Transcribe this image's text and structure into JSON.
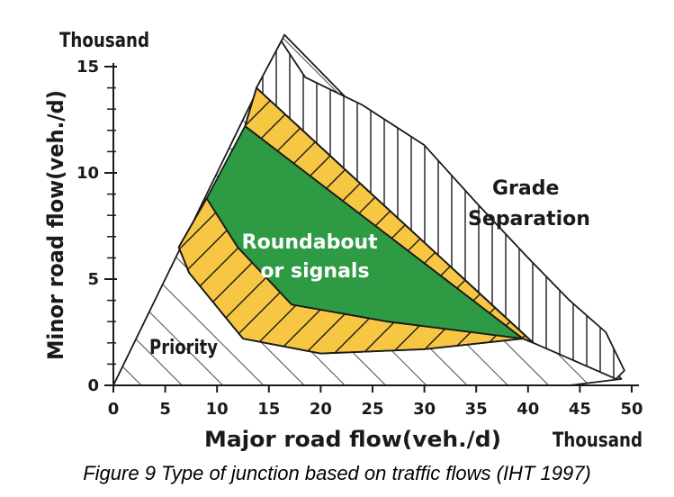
{
  "chart_data": {
    "type": "area",
    "title": "",
    "xlabel": "Major road flow(veh./d)",
    "ylabel": "Minor road flow(veh./d)",
    "x_unit": "Thousand",
    "y_unit": "Thousand",
    "xlim": [
      0,
      50
    ],
    "ylim": [
      0,
      15
    ],
    "x_ticks": [
      0,
      5,
      10,
      15,
      20,
      25,
      30,
      35,
      40,
      45,
      50
    ],
    "y_ticks": [
      0,
      5,
      10,
      15
    ],
    "grid": false,
    "legend": "none",
    "colors": {
      "roundabout_green": "#2e9a44",
      "transition_yellow": "#f7c744",
      "outline": "#1a1a1a",
      "region_label_dark": "#1a1a1a",
      "region_label_light": "#ffffff"
    },
    "regions": [
      {
        "name": "Priority",
        "label": "Priority",
        "fill": "hatched",
        "polygon": [
          [
            0,
            0
          ],
          [
            16.5,
            16.5
          ],
          [
            49,
            0.3
          ],
          [
            44,
            0
          ]
        ]
      },
      {
        "name": "Grade Separation",
        "label": "Grade Separation",
        "fill": "hatched",
        "polygon": [
          [
            16.2,
            16.2
          ],
          [
            18.5,
            14.5
          ],
          [
            24,
            13.2
          ],
          [
            30,
            11.3
          ],
          [
            35,
            8.6
          ],
          [
            40,
            6
          ],
          [
            44,
            4
          ],
          [
            47.5,
            2.5
          ],
          [
            49.3,
            0.7
          ],
          [
            48.5,
            0.3
          ],
          [
            40.5,
            2
          ],
          [
            13.8,
            14
          ]
        ]
      },
      {
        "name": "Priority/roundabout transition band",
        "label": "",
        "fill": "transition_yellow",
        "polygon": [
          [
            9,
            8.8
          ],
          [
            6.3,
            6.5
          ],
          [
            7.3,
            5.3
          ],
          [
            12.5,
            2.2
          ],
          [
            20,
            1.5
          ],
          [
            30,
            1.7
          ],
          [
            39.5,
            2.2
          ],
          [
            26.5,
            3
          ],
          [
            17.2,
            3.8
          ],
          [
            12,
            6.5
          ]
        ]
      },
      {
        "name": "Roundabout/grade-separation transition band",
        "label": "",
        "fill": "transition_yellow",
        "polygon": [
          [
            13.8,
            14
          ],
          [
            40.5,
            2
          ],
          [
            39.5,
            2.2
          ],
          [
            12.7,
            12.2
          ]
        ]
      },
      {
        "name": "Roundabout or signals",
        "label": "Roundabout or signals",
        "fill": "roundabout_green",
        "polygon": [
          [
            12.7,
            12.2
          ],
          [
            39.5,
            2.2
          ],
          [
            26.5,
            3
          ],
          [
            17.2,
            3.8
          ],
          [
            12,
            6.5
          ],
          [
            9,
            8.8
          ]
        ]
      }
    ]
  },
  "caption": "Figure 9 Type of junction based on traffic flows (IHT 1997)"
}
